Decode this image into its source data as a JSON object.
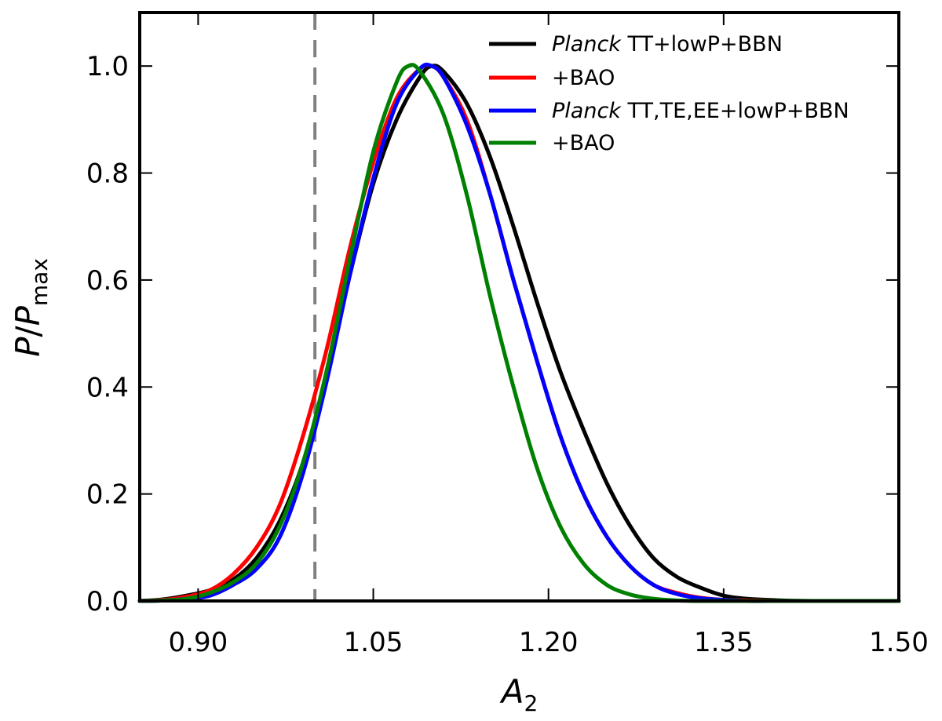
{
  "chart_data": {
    "type": "line",
    "title": "",
    "xlabel": {
      "main": "A",
      "sub": "2"
    },
    "ylabel": {
      "num": "P",
      "slash": "/",
      "den": "P",
      "den_sub": "max"
    },
    "xlim": [
      0.85,
      1.5
    ],
    "ylim": [
      0.0,
      1.1
    ],
    "xticks": [
      0.9,
      1.05,
      1.2,
      1.35,
      1.5
    ],
    "xtick_labels": [
      "0.90",
      "1.05",
      "1.20",
      "1.35",
      "1.50"
    ],
    "yticks": [
      0.0,
      0.2,
      0.4,
      0.6,
      0.8,
      1.0
    ],
    "ytick_labels": [
      "0.0",
      "0.2",
      "0.4",
      "0.6",
      "0.8",
      "1.0"
    ],
    "grid": false,
    "legend_position": "top-right",
    "reference_line": {
      "x": 1.0,
      "style": "dashed",
      "color": "#808080"
    },
    "series": [
      {
        "name": "Planck TT+lowP+BBN",
        "label_italic": "Planck",
        "label_rest": " TT+lowP+BBN",
        "color": "#000000",
        "x": [
          0.85,
          0.87,
          0.89,
          0.91,
          0.93,
          0.95,
          0.97,
          0.99,
          1.01,
          1.03,
          1.05,
          1.07,
          1.09,
          1.1,
          1.11,
          1.13,
          1.15,
          1.17,
          1.19,
          1.21,
          1.23,
          1.25,
          1.27,
          1.29,
          1.31,
          1.33,
          1.35,
          1.37,
          1.4,
          1.43,
          1.46,
          1.5
        ],
        "y": [
          0.0,
          0.003,
          0.01,
          0.02,
          0.04,
          0.08,
          0.15,
          0.26,
          0.42,
          0.61,
          0.78,
          0.9,
          0.98,
          1.0,
          0.99,
          0.93,
          0.83,
          0.7,
          0.56,
          0.43,
          0.32,
          0.22,
          0.14,
          0.08,
          0.045,
          0.025,
          0.01,
          0.004,
          0.001,
          0.0,
          0.0,
          0.0
        ]
      },
      {
        "name": "+BAO",
        "label_italic": "",
        "label_rest": "+BAO",
        "color": "#ff0000",
        "x": [
          0.85,
          0.87,
          0.89,
          0.91,
          0.93,
          0.95,
          0.97,
          0.99,
          1.01,
          1.03,
          1.05,
          1.07,
          1.09,
          1.1,
          1.11,
          1.13,
          1.15,
          1.17,
          1.19,
          1.21,
          1.23,
          1.25,
          1.27,
          1.29,
          1.31,
          1.33,
          1.35,
          1.37,
          1.4,
          1.43,
          1.46,
          1.5
        ],
        "y": [
          0.0,
          0.002,
          0.008,
          0.02,
          0.05,
          0.1,
          0.18,
          0.31,
          0.47,
          0.66,
          0.82,
          0.94,
          0.995,
          1.0,
          0.98,
          0.9,
          0.76,
          0.6,
          0.45,
          0.31,
          0.2,
          0.12,
          0.065,
          0.03,
          0.015,
          0.006,
          0.002,
          0.001,
          0.0,
          0.0,
          0.0,
          0.0
        ]
      },
      {
        "name": "Planck TT,TE,EE+lowP+BBN",
        "label_italic": "Planck",
        "label_rest": " TT,TE,EE+lowP+BBN",
        "color": "#0000ff",
        "x": [
          0.85,
          0.87,
          0.89,
          0.91,
          0.93,
          0.95,
          0.97,
          0.99,
          1.01,
          1.03,
          1.05,
          1.07,
          1.09,
          1.1,
          1.11,
          1.13,
          1.15,
          1.17,
          1.19,
          1.21,
          1.23,
          1.25,
          1.27,
          1.29,
          1.31,
          1.33,
          1.35,
          1.37,
          1.4,
          1.43,
          1.46,
          1.5
        ],
        "y": [
          0.0,
          0.001,
          0.004,
          0.01,
          0.03,
          0.06,
          0.12,
          0.24,
          0.41,
          0.61,
          0.79,
          0.93,
          0.995,
          1.0,
          0.98,
          0.89,
          0.76,
          0.6,
          0.45,
          0.31,
          0.2,
          0.12,
          0.065,
          0.03,
          0.013,
          0.005,
          0.002,
          0.0,
          0.0,
          0.0,
          0.0,
          0.0
        ]
      },
      {
        "name": "+BAO",
        "label_italic": "",
        "label_rest": "+BAO",
        "color": "#008000",
        "x": [
          0.85,
          0.87,
          0.89,
          0.91,
          0.93,
          0.95,
          0.97,
          0.99,
          1.01,
          1.03,
          1.05,
          1.07,
          1.08,
          1.09,
          1.11,
          1.13,
          1.15,
          1.17,
          1.19,
          1.21,
          1.23,
          1.25,
          1.27,
          1.29,
          1.31,
          1.33,
          1.35,
          1.4,
          1.5
        ],
        "y": [
          0.0,
          0.001,
          0.004,
          0.015,
          0.035,
          0.07,
          0.14,
          0.26,
          0.43,
          0.64,
          0.84,
          0.97,
          1.0,
          0.99,
          0.91,
          0.76,
          0.57,
          0.4,
          0.25,
          0.14,
          0.07,
          0.03,
          0.012,
          0.004,
          0.001,
          0.0,
          0.0,
          0.0,
          0.0
        ]
      }
    ]
  }
}
